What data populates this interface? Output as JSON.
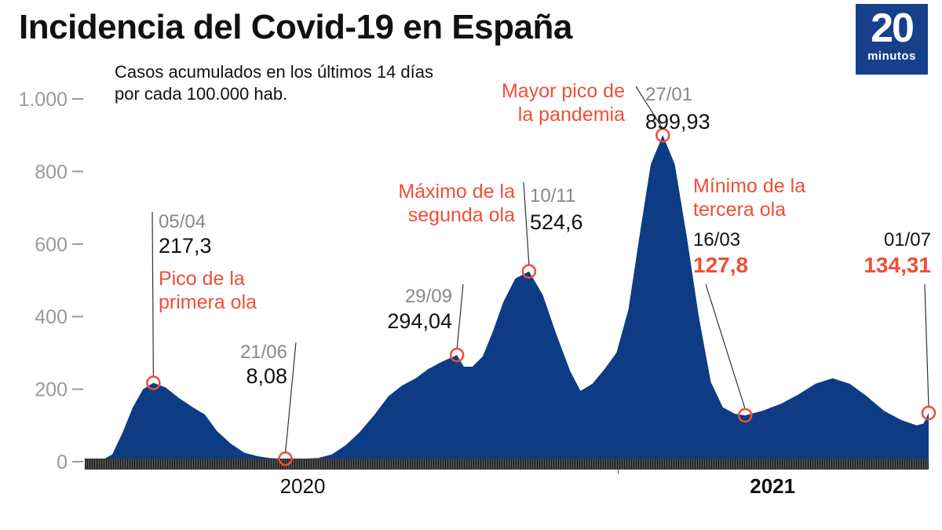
{
  "title": "Incidencia del Covid-19 en España",
  "subtitle": "Casos acumulados en los últimos 14 días por cada 100.000 hab.",
  "logo": {
    "number": "20",
    "word": "minutos"
  },
  "colors": {
    "area": "#0d3c84",
    "accent": "#f04e37",
    "axis": "#9a9a9a",
    "date": "#888888",
    "text": "#111111"
  },
  "chart_data": {
    "type": "area",
    "title": "Incidencia del Covid-19 en España",
    "subtitle": "Casos acumulados en los últimos 14 días por cada 100.000 hab.",
    "ylim": [
      0,
      1000
    ],
    "y_ticks": [
      0,
      200,
      400,
      600,
      800,
      1000
    ],
    "y_tick_labels": [
      "0",
      "200",
      "400",
      "600",
      "800",
      "1.000"
    ],
    "x_range": [
      "2020-02-25",
      "2021-07-01"
    ],
    "x_year_labels": [
      {
        "label": "2020",
        "date": "2020-07-01",
        "bold": false
      },
      {
        "label": "2021",
        "date": "2021-04-01",
        "bold": true
      }
    ],
    "grid": false,
    "series": [
      {
        "points": [
          [
            "2020-02-25",
            0
          ],
          [
            "2020-03-05",
            2
          ],
          [
            "2020-03-12",
            20
          ],
          [
            "2020-03-18",
            80
          ],
          [
            "2020-03-24",
            150
          ],
          [
            "2020-03-30",
            200
          ],
          [
            "2020-04-05",
            217.3
          ],
          [
            "2020-04-12",
            205
          ],
          [
            "2020-04-20",
            175
          ],
          [
            "2020-04-28",
            150
          ],
          [
            "2020-05-05",
            130
          ],
          [
            "2020-05-12",
            85
          ],
          [
            "2020-05-20",
            50
          ],
          [
            "2020-05-28",
            25
          ],
          [
            "2020-06-05",
            15
          ],
          [
            "2020-06-12",
            10
          ],
          [
            "2020-06-21",
            8.08
          ],
          [
            "2020-07-01",
            8
          ],
          [
            "2020-07-10",
            10
          ],
          [
            "2020-07-18",
            20
          ],
          [
            "2020-07-26",
            45
          ],
          [
            "2020-08-03",
            80
          ],
          [
            "2020-08-12",
            130
          ],
          [
            "2020-08-20",
            180
          ],
          [
            "2020-08-28",
            210
          ],
          [
            "2020-09-05",
            230
          ],
          [
            "2020-09-12",
            255
          ],
          [
            "2020-09-20",
            275
          ],
          [
            "2020-09-29",
            294.04
          ],
          [
            "2020-10-03",
            262
          ],
          [
            "2020-10-08",
            262
          ],
          [
            "2020-10-14",
            290
          ],
          [
            "2020-10-20",
            360
          ],
          [
            "2020-10-26",
            440
          ],
          [
            "2020-11-02",
            505
          ],
          [
            "2020-11-10",
            524.6
          ],
          [
            "2020-11-18",
            460
          ],
          [
            "2020-11-26",
            350
          ],
          [
            "2020-12-04",
            250
          ],
          [
            "2020-12-10",
            195
          ],
          [
            "2020-12-17",
            215
          ],
          [
            "2020-12-24",
            255
          ],
          [
            "2020-12-31",
            300
          ],
          [
            "2021-01-07",
            420
          ],
          [
            "2021-01-14",
            640
          ],
          [
            "2021-01-20",
            820
          ],
          [
            "2021-01-27",
            899.93
          ],
          [
            "2021-02-03",
            820
          ],
          [
            "2021-02-10",
            620
          ],
          [
            "2021-02-17",
            400
          ],
          [
            "2021-02-24",
            220
          ],
          [
            "2021-03-03",
            150
          ],
          [
            "2021-03-10",
            132
          ],
          [
            "2021-03-16",
            127.8
          ],
          [
            "2021-03-26",
            140
          ],
          [
            "2021-04-06",
            160
          ],
          [
            "2021-04-16",
            185
          ],
          [
            "2021-04-26",
            215
          ],
          [
            "2021-05-06",
            230
          ],
          [
            "2021-05-16",
            215
          ],
          [
            "2021-05-26",
            180
          ],
          [
            "2021-06-05",
            140
          ],
          [
            "2021-06-15",
            115
          ],
          [
            "2021-06-24",
            100
          ],
          [
            "2021-06-28",
            105
          ],
          [
            "2021-07-01",
            134.31
          ]
        ]
      }
    ],
    "annotations": [
      {
        "date": "2020-04-05",
        "value": 217.3,
        "date_label": "05/04",
        "value_label": "217,3",
        "note_lines": [
          "Pico de la",
          "primera ola"
        ],
        "highlight": false
      },
      {
        "date": "2020-06-21",
        "value": 8.08,
        "date_label": "21/06",
        "value_label": "8,08",
        "note_lines": [],
        "highlight": false
      },
      {
        "date": "2020-09-29",
        "value": 294.04,
        "date_label": "29/09",
        "value_label": "294,04",
        "note_lines": [],
        "highlight": false
      },
      {
        "date": "2020-11-10",
        "value": 524.6,
        "date_label": "10/11",
        "value_label": "524,6",
        "note_lines": [
          "Máximo de la",
          "segunda ola"
        ],
        "highlight": false
      },
      {
        "date": "2021-01-27",
        "value": 899.93,
        "date_label": "27/01",
        "value_label": "899,93",
        "note_lines": [
          "Mayor pico de",
          "la pandemia"
        ],
        "highlight": false
      },
      {
        "date": "2021-03-16",
        "value": 127.8,
        "date_label": "16/03",
        "value_label": "127,8",
        "note_lines": [
          "Mínimo de la",
          "tercera ola"
        ],
        "highlight": true
      },
      {
        "date": "2021-07-01",
        "value": 134.31,
        "date_label": "01/07",
        "value_label": "134,31",
        "note_lines": [],
        "highlight": true
      }
    ]
  }
}
